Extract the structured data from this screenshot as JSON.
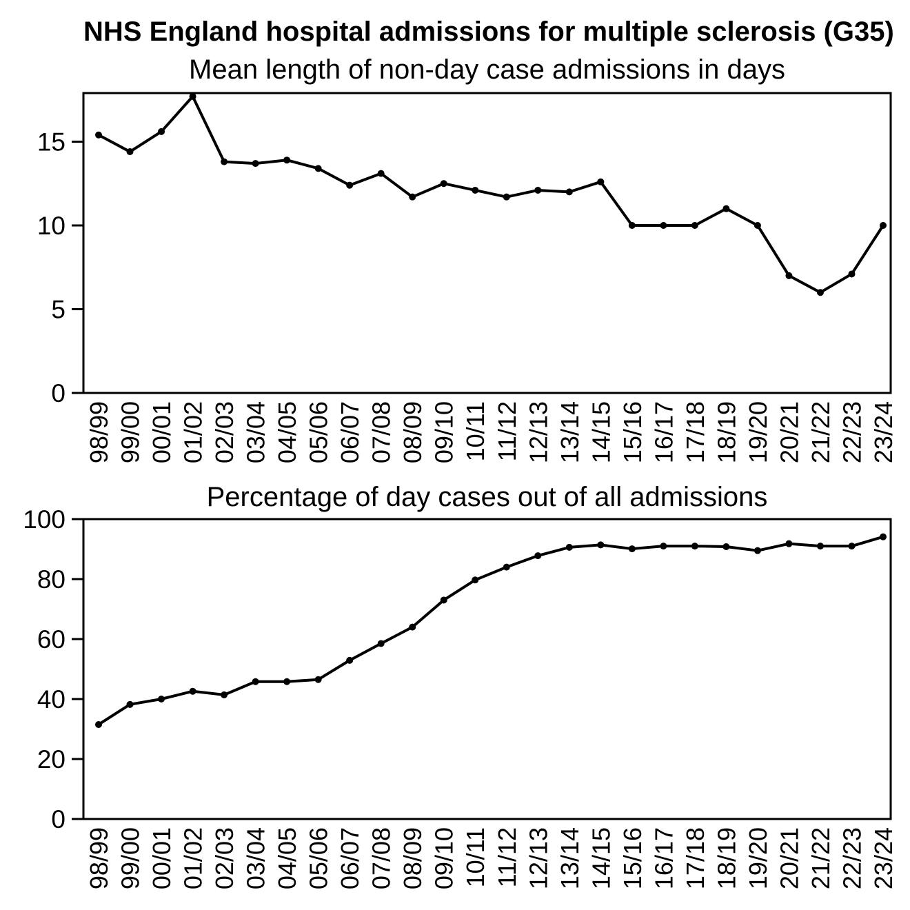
{
  "page_title": "NHS England hospital admissions for multiple sclerosis (G35)",
  "colors": {
    "foreground": "#000000",
    "background": "#ffffff"
  },
  "chart_data": [
    {
      "type": "line",
      "title": "Mean length of non-day case admissions in days",
      "categories": [
        "98/99",
        "99/00",
        "00/01",
        "01/02",
        "02/03",
        "03/04",
        "04/05",
        "05/06",
        "06/07",
        "07/08",
        "08/09",
        "09/10",
        "10/11",
        "11/12",
        "12/13",
        "13/14",
        "14/15",
        "15/16",
        "16/17",
        "17/18",
        "18/19",
        "19/20",
        "20/21",
        "21/22",
        "22/23",
        "23/24"
      ],
      "values": [
        15.4,
        14.4,
        15.6,
        17.7,
        13.8,
        13.7,
        13.9,
        13.4,
        12.4,
        13.1,
        11.7,
        12.5,
        12.1,
        11.7,
        12.1,
        12.0,
        12.6,
        10.0,
        10.0,
        10.0,
        11.0,
        10.0,
        7.0,
        6.0,
        7.1,
        10.0
      ],
      "xlabel": "",
      "ylabel": "",
      "ylim": [
        0,
        17.9
      ],
      "yticks": [
        0,
        5,
        10,
        15
      ],
      "grid": false,
      "legend": null,
      "line_color": "#000000",
      "marker": "circle"
    },
    {
      "type": "line",
      "title": "Percentage of day cases out of all admissions",
      "categories": [
        "98/99",
        "99/00",
        "00/01",
        "01/02",
        "02/03",
        "03/04",
        "04/05",
        "05/06",
        "06/07",
        "07/08",
        "08/09",
        "09/10",
        "10/11",
        "11/12",
        "12/13",
        "13/14",
        "14/15",
        "15/16",
        "16/17",
        "17/18",
        "18/19",
        "19/20",
        "20/21",
        "21/22",
        "22/23",
        "23/24"
      ],
      "values": [
        31.5,
        38.2,
        40.0,
        42.6,
        41.4,
        45.8,
        45.8,
        46.5,
        52.9,
        58.5,
        64.0,
        73.0,
        79.7,
        84.0,
        87.8,
        90.6,
        91.4,
        90.1,
        91.0,
        91.0,
        90.8,
        89.5,
        91.8,
        91.0,
        91.0,
        94.1
      ],
      "xlabel": "",
      "ylabel": "",
      "ylim": [
        0,
        100
      ],
      "yticks": [
        0,
        20,
        40,
        60,
        80,
        100
      ],
      "grid": false,
      "legend": null,
      "line_color": "#000000",
      "marker": "circle"
    }
  ]
}
